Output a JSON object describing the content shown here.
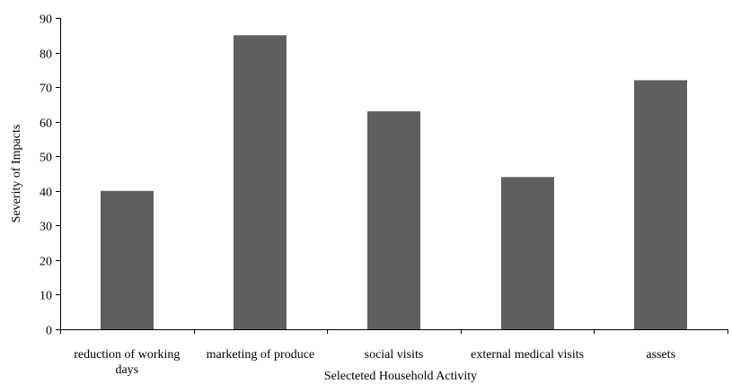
{
  "chart_data": {
    "type": "bar",
    "title": "",
    "xlabel": "Selecteted Household Activity",
    "ylabel": "Severity of Impacts",
    "ylim": [
      0,
      90
    ],
    "yticks": [
      0,
      10,
      20,
      30,
      40,
      50,
      60,
      70,
      80,
      90
    ],
    "categories": [
      [
        "reduction of working",
        "days"
      ],
      [
        "marketing of produce"
      ],
      [
        "social visits"
      ],
      [
        "external medical visits"
      ],
      [
        "assets"
      ]
    ],
    "values": [
      40,
      85,
      63,
      44,
      72
    ],
    "grid": false,
    "legend": "none",
    "bar_color": "#5f5f5f"
  }
}
